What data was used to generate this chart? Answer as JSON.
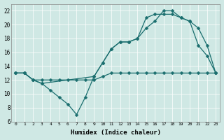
{
  "xlabel": "Humidex (Indice chaleur)",
  "xlim": [
    -0.5,
    23.5
  ],
  "ylim": [
    6,
    23
  ],
  "xticks": [
    0,
    1,
    2,
    3,
    4,
    5,
    6,
    7,
    8,
    9,
    10,
    11,
    12,
    13,
    14,
    15,
    16,
    17,
    18,
    19,
    20,
    21,
    22,
    23
  ],
  "yticks": [
    6,
    8,
    10,
    12,
    14,
    16,
    18,
    20,
    22
  ],
  "bg_color": "#cfe8e4",
  "grid_color": "#ffffff",
  "line_color": "#1a6e6e",
  "line1_x": [
    0,
    1,
    2,
    3,
    4,
    5,
    6,
    7,
    8,
    9,
    10,
    11,
    12,
    13,
    14,
    15,
    16,
    17,
    18,
    19,
    20,
    21,
    22,
    23
  ],
  "line1_y": [
    13,
    13,
    12,
    11.5,
    10.5,
    9.5,
    8.5,
    7.0,
    9.5,
    12.5,
    14.5,
    16.5,
    17.5,
    17.5,
    18.0,
    19.5,
    20.5,
    22.0,
    22.0,
    21.0,
    20.5,
    17.0,
    15.5,
    13.0
  ],
  "line2_x": [
    0,
    1,
    2,
    3,
    9,
    10,
    11,
    12,
    13,
    14,
    15,
    16,
    17,
    18,
    19,
    20,
    21,
    22,
    23
  ],
  "line2_y": [
    13,
    13,
    12,
    11.5,
    12.5,
    14.5,
    16.5,
    17.5,
    17.5,
    18.0,
    21.0,
    21.5,
    21.5,
    21.5,
    21.0,
    20.5,
    19.5,
    17.0,
    13.0
  ],
  "line3_x": [
    0,
    1,
    2,
    3,
    4,
    5,
    6,
    7,
    8,
    9,
    10,
    11,
    12,
    13,
    14,
    15,
    16,
    17,
    18,
    19,
    20,
    21,
    22,
    23
  ],
  "line3_y": [
    13,
    13,
    12,
    12,
    12,
    12,
    12,
    12,
    12,
    12,
    12.5,
    13,
    13,
    13,
    13,
    13,
    13,
    13,
    13,
    13,
    13,
    13,
    13,
    13
  ]
}
